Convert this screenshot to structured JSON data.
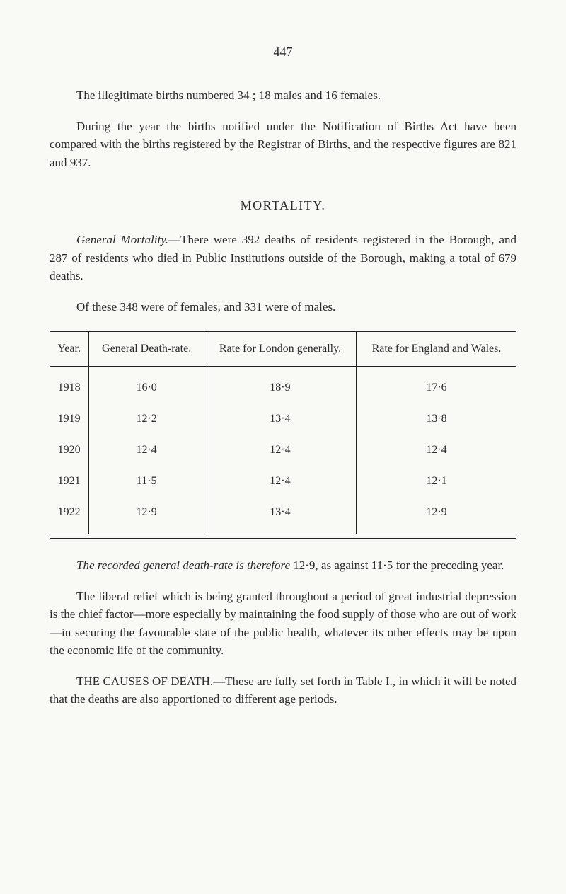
{
  "page_number": "447",
  "paragraphs": {
    "p1": "The illegitimate births numbered 34 ; 18 males and 16 females.",
    "p2": "During the year the births notified under the Notification of Births Act have been compared with the births registered by the Registrar of Births, and the respective figures are 821 and 937.",
    "p3_lead": "General Mortality.",
    "p3_rest": "—There were 392 deaths of residents registered in the Borough, and 287 of residents who died in Public Institutions outside of the Borough, making a total of 679 deaths.",
    "p4": "Of these 348 were of females, and 331 were of males.",
    "p5_lead": "The recorded general death-rate is therefore",
    "p5_value": " 12·9, as against 11·5 for the preceding year.",
    "p6": "The liberal relief which is being granted throughout a period of great industrial depression is the chief factor—more especially by maintaining the food supply of those who are out of work—in securing the favourable state of the public health, whatever its other effects may be upon the economic life of the community.",
    "p7_lead": "THE CAUSES OF DEATH.—",
    "p7_rest": "These are fully set forth in Table I., in which it will be noted that the deaths are also apportioned to different age periods."
  },
  "section_heading": "MORTALITY.",
  "table": {
    "columns": [
      "Year.",
      "General Death-rate.",
      "Rate for London generally.",
      "Rate for England and Wales."
    ],
    "rows": [
      [
        "1918",
        "16·0",
        "18·9",
        "17·6"
      ],
      [
        "1919",
        "12·2",
        "13·4",
        "13·8"
      ],
      [
        "1920",
        "12·4",
        "12·4",
        "12·4"
      ],
      [
        "1921",
        "11·5",
        "12·4",
        "12·1"
      ],
      [
        "1922",
        "12·9",
        "13·4",
        "12·9"
      ]
    ]
  }
}
